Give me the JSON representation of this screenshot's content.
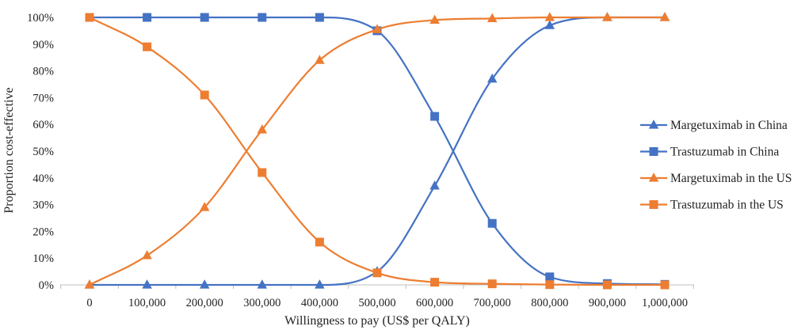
{
  "chart_data": {
    "type": "line",
    "xlabel": "Willingness to pay (US$ per QALY)",
    "ylabel": "Proportion cost-effective",
    "x": [
      0,
      100000,
      200000,
      300000,
      400000,
      500000,
      600000,
      700000,
      800000,
      900000,
      1000000
    ],
    "x_tick_labels": [
      "0",
      "100,000",
      "200,000",
      "300,000",
      "400,000",
      "500,000",
      "600,000",
      "700,000",
      "800,000",
      "900,000",
      "1,000,000"
    ],
    "y_tick_labels": [
      "0%",
      "10%",
      "20%",
      "30%",
      "40%",
      "50%",
      "60%",
      "70%",
      "80%",
      "90%",
      "100%"
    ],
    "xlim": [
      0,
      1000000
    ],
    "ylim": [
      0,
      100
    ],
    "y_unit": "%",
    "grid": false,
    "legend_position": "right",
    "series": [
      {
        "name": "Margetuximab in China",
        "marker": "triangle",
        "color": "#4472C4",
        "values": [
          0,
          0,
          0,
          0,
          0,
          5,
          37,
          77,
          97,
          100,
          100
        ]
      },
      {
        "name": "Trastuzumab in China",
        "marker": "square",
        "color": "#4472C4",
        "values": [
          100,
          100,
          100,
          100,
          100,
          95,
          63,
          23,
          3,
          0.5,
          0.2
        ]
      },
      {
        "name": "Margetuximab in the US",
        "marker": "triangle",
        "color": "#ED7D31",
        "values": [
          0,
          11,
          29,
          58,
          84,
          95.5,
          99,
          99.6,
          100,
          100,
          100
        ]
      },
      {
        "name": "Trastuzumab in the US",
        "marker": "square",
        "color": "#ED7D31",
        "values": [
          100,
          89,
          71,
          42,
          16,
          4.5,
          1,
          0.4,
          0.1,
          0,
          0
        ]
      }
    ]
  }
}
